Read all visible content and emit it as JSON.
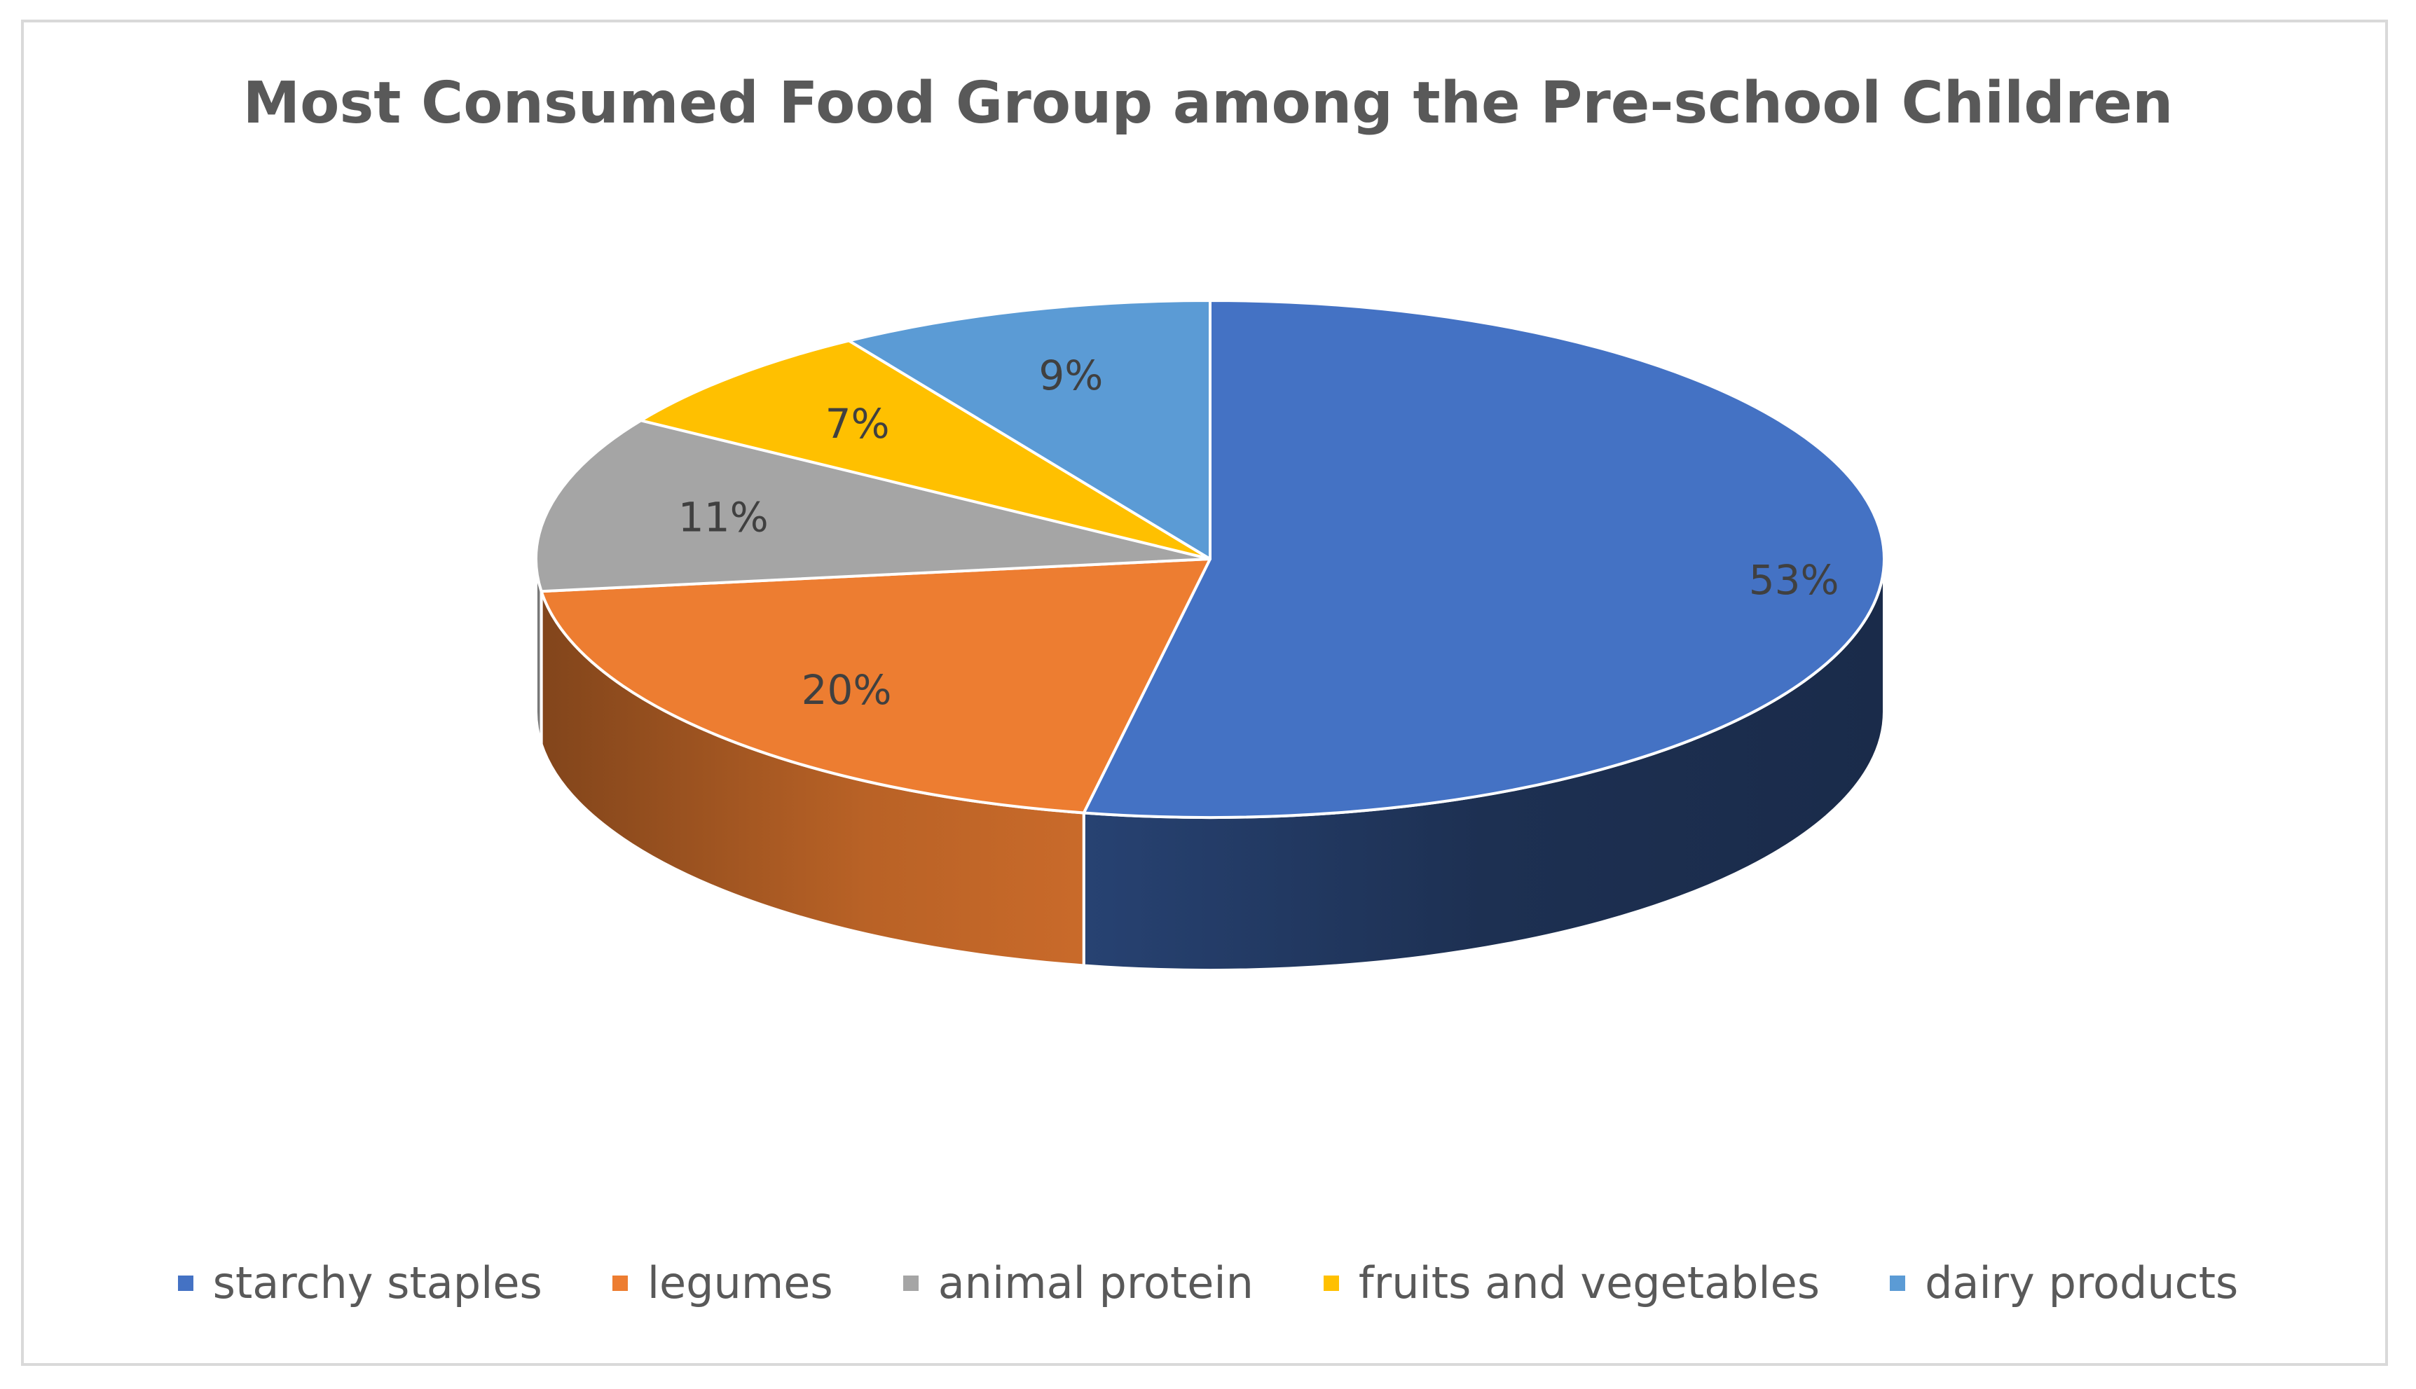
{
  "chart_data": {
    "type": "pie",
    "title": "Most Consumed Food Group among the Pre-school Children",
    "categories": [
      "starchy staples",
      "legumes",
      "animal protein",
      "fruits and vegetables",
      "dairy products"
    ],
    "values": [
      53,
      20,
      11,
      7,
      9
    ],
    "labels": [
      "53%",
      "20%",
      "11%",
      "7%",
      "9%"
    ],
    "colors": [
      "#4472C4",
      "#ED7D31",
      "#A5A5A5",
      "#FFC000",
      "#5B9BD5"
    ],
    "legend": "bottom",
    "style": "3d"
  }
}
